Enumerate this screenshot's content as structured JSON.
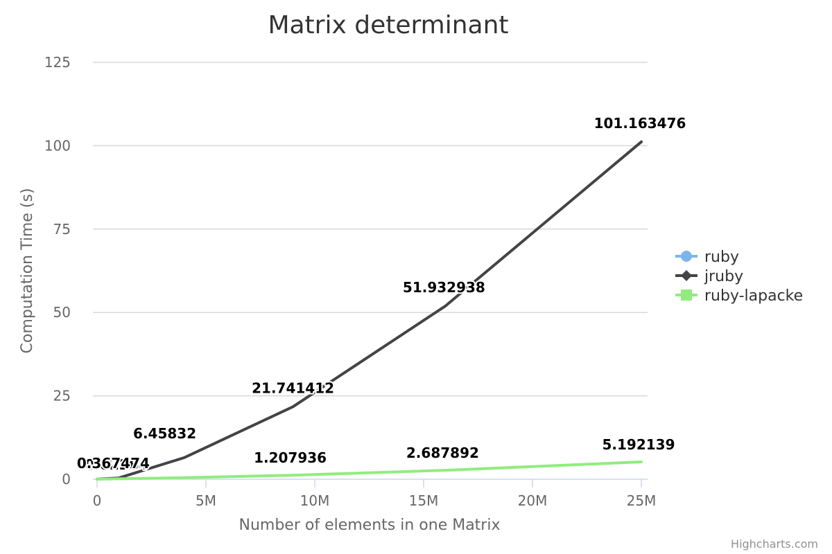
{
  "chart_data": {
    "type": "line",
    "title": "Matrix determinant",
    "xlabel": "Number of elements in one Matrix",
    "ylabel": "Computation Time (s)",
    "xlim": [
      0,
      25000000
    ],
    "ylim": [
      0,
      125
    ],
    "x_ticks": [
      0,
      5000000,
      10000000,
      15000000,
      20000000,
      25000000
    ],
    "x_tick_labels": [
      "0",
      "5M",
      "10M",
      "15M",
      "20M",
      "25M"
    ],
    "y_ticks": [
      0,
      25,
      50,
      75,
      100,
      125
    ],
    "y_tick_labels": [
      "0",
      "25",
      "50",
      "75",
      "100",
      "125"
    ],
    "grid": true,
    "legend_position": "right",
    "series": [
      {
        "name": "ruby",
        "color": "#7cb5ec",
        "marker": "circle",
        "x": [],
        "values": []
      },
      {
        "name": "jruby",
        "color": "#434348",
        "marker": "diamond",
        "x": [
          0,
          1000000,
          4000000,
          9000000,
          16000000,
          25000000
        ],
        "values": [
          0.02264,
          0.367474,
          6.45832,
          21.741412,
          51.932938,
          101.163476
        ],
        "labels": [
          "0.02264",
          "0.367474",
          "6.45832",
          "21.741412",
          "51.932938",
          "101.163476"
        ]
      },
      {
        "name": "ruby-lapacke",
        "color": "#90ed7d",
        "marker": "square",
        "x": [
          0,
          1000000,
          4000000,
          9000000,
          16000000,
          25000000
        ],
        "values": [
          0.0,
          0.12,
          0.45,
          1.207936,
          2.687892,
          5.192139
        ],
        "labels": [
          "",
          "",
          "",
          "1.207936",
          "2.687892",
          "5.192139"
        ]
      }
    ]
  },
  "credits": "Highcharts.com"
}
